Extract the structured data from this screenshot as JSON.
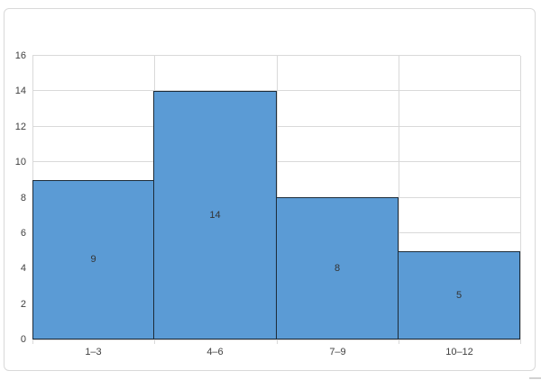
{
  "chart_data": {
    "type": "bar",
    "subtype": "histogram",
    "title": "",
    "xlabel": "",
    "ylabel": "",
    "categories": [
      "1–3",
      "4–6",
      "7–9",
      "10–12"
    ],
    "values": [
      9,
      14,
      8,
      5
    ],
    "data_labels": [
      "9",
      "14",
      "8",
      "5"
    ],
    "ylim": [
      0,
      16
    ],
    "ytick_step": 2,
    "yticks": [
      "0",
      "2",
      "4",
      "6",
      "8",
      "10",
      "12",
      "14",
      "16"
    ],
    "grid": true,
    "legend": false,
    "gap_between_bars": false,
    "colors": {
      "bar_fill": "#5b9bd5",
      "bar_border": "#1c2b38",
      "gridline": "#d9d9d9",
      "axis_text": "#404040",
      "data_label_text": "#333333",
      "frame_border": "#d9d9d9",
      "background": "#ffffff"
    }
  }
}
